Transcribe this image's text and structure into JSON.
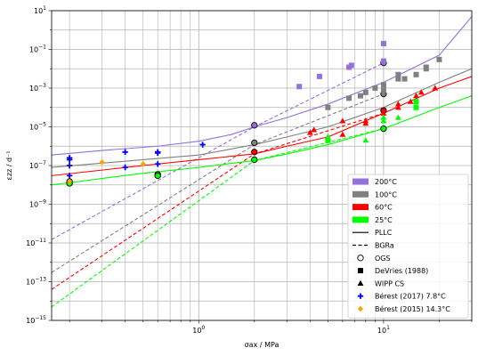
{
  "chart_data": {
    "type": "scatter",
    "xscale": "log",
    "yscale": "log",
    "xlim": [
      0.16,
      30
    ],
    "ylim": [
      1e-15,
      10
    ],
    "grid": true,
    "xlabel": "σax / MPa",
    "ylabel": "εzz / d⁻¹",
    "xticks": [
      {
        "value": 1,
        "base": "10",
        "exp": "0"
      },
      {
        "value": 10,
        "base": "10",
        "exp": "1"
      }
    ],
    "yticks": [
      {
        "value": 1e-15,
        "base": "10",
        "exp": "−15"
      },
      {
        "value": 1e-13,
        "base": "10",
        "exp": "−13"
      },
      {
        "value": 1e-11,
        "base": "10",
        "exp": "−11"
      },
      {
        "value": 1e-09,
        "base": "10",
        "exp": "−9"
      },
      {
        "value": 1e-07,
        "base": "10",
        "exp": "−7"
      },
      {
        "value": 1e-05,
        "base": "10",
        "exp": "−5"
      },
      {
        "value": 0.001,
        "base": "10",
        "exp": "−3"
      },
      {
        "value": 0.1,
        "base": "10",
        "exp": "−1"
      },
      {
        "value": 10,
        "base": "10",
        "exp": "1"
      }
    ],
    "legend_position": "lower-right",
    "legend": [
      {
        "label": "200°C",
        "kind": "patch",
        "color": "#9370DB"
      },
      {
        "label": "100°C",
        "kind": "patch",
        "color": "#808080"
      },
      {
        "label": "60°C",
        "kind": "patch",
        "color": "#ff0000"
      },
      {
        "label": "25°C",
        "kind": "patch",
        "color": "#00ff00"
      },
      {
        "label": "PLLC",
        "kind": "solid-line",
        "color": "#000000"
      },
      {
        "label": "BGRa",
        "kind": "dashed-line",
        "color": "#000000"
      },
      {
        "label": "OGS",
        "kind": "open-circle",
        "color": "#000000"
      },
      {
        "label": "DeVries (1988)",
        "kind": "square",
        "color": "#000000"
      },
      {
        "label": "WIPP CS",
        "kind": "triangle",
        "color": "#000000"
      },
      {
        "label": "Bérest (2017) 7.8°C",
        "kind": "plus",
        "color": "#0000ff"
      },
      {
        "label": "Bérest (2015) 14.3°C",
        "kind": "diamond",
        "color": "#ffa500"
      }
    ],
    "series": [
      {
        "type": "solid-line",
        "color": "#9370DB",
        "name": "200°C PLLC",
        "points": [
          [
            0.16,
            3.5e-07
          ],
          [
            0.3,
            6e-07
          ],
          [
            0.6,
            1e-06
          ],
          [
            1,
            1.8e-06
          ],
          [
            1.5,
            4e-06
          ],
          [
            2,
            1e-05
          ],
          [
            3,
            3e-05
          ],
          [
            5,
            0.00015
          ],
          [
            10,
            0.002
          ],
          [
            20,
            0.05
          ],
          [
            30,
            5
          ]
        ]
      },
      {
        "type": "dashed-line",
        "color": "#9370DB",
        "name": "200°C BGRa",
        "points": [
          [
            0.16,
            1.5e-11
          ],
          [
            2,
            1e-05
          ],
          [
            10,
            0.02
          ]
        ]
      },
      {
        "type": "solid-line",
        "color": "#808080",
        "name": "100°C PLLC",
        "points": [
          [
            0.16,
            8e-08
          ],
          [
            0.5,
            2e-07
          ],
          [
            1,
            3.5e-07
          ],
          [
            2,
            1.2e-06
          ],
          [
            3,
            3e-06
          ],
          [
            5,
            1e-05
          ],
          [
            10,
            0.0001
          ],
          [
            20,
            0.002
          ],
          [
            30,
            0.01
          ]
        ]
      },
      {
        "type": "dashed-line",
        "color": "#808080",
        "name": "100°C BGRa",
        "points": [
          [
            0.16,
            3e-13
          ],
          [
            2,
            1.2e-06
          ],
          [
            10,
            0.0005
          ]
        ]
      },
      {
        "type": "solid-line",
        "color": "#ff0000",
        "name": "60°C PLLC",
        "points": [
          [
            0.16,
            3e-08
          ],
          [
            0.5,
            1e-07
          ],
          [
            1,
            2e-07
          ],
          [
            2,
            4e-07
          ],
          [
            3,
            1e-06
          ],
          [
            5,
            3e-06
          ],
          [
            10,
            5e-05
          ],
          [
            20,
            0.001
          ],
          [
            30,
            0.004
          ]
        ]
      },
      {
        "type": "dashed-line",
        "color": "#ff0000",
        "name": "60°C BGRa",
        "points": [
          [
            0.16,
            4e-14
          ],
          [
            2,
            4e-07
          ],
          [
            10,
            5e-05
          ]
        ]
      },
      {
        "type": "solid-line",
        "color": "#00ff00",
        "name": "25°C PLLC",
        "points": [
          [
            0.16,
            1e-08
          ],
          [
            0.5,
            4e-08
          ],
          [
            1,
            8e-08
          ],
          [
            2,
            1.8e-07
          ],
          [
            3,
            4e-07
          ],
          [
            5,
            1.2e-06
          ],
          [
            10,
            8e-06
          ],
          [
            20,
            0.0001
          ],
          [
            30,
            0.0004
          ]
        ]
      },
      {
        "type": "dashed-line",
        "color": "#00ff00",
        "name": "25°C BGRa",
        "points": [
          [
            0.16,
            5e-15
          ],
          [
            2,
            1.8e-07
          ],
          [
            10,
            8e-06
          ]
        ]
      },
      {
        "type": "open-circle",
        "name": "OGS",
        "points": [
          [
            0.2,
            1.5e-08,
            "#808080"
          ],
          [
            0.2,
            1.2e-08,
            "#00ff00"
          ],
          [
            0.6,
            3.5e-08,
            "#808080"
          ],
          [
            0.6,
            3e-08,
            "#00ff00"
          ],
          [
            2,
            1.2e-05,
            "#9370DB"
          ],
          [
            2,
            1.5e-06,
            "#808080"
          ],
          [
            2,
            5e-07,
            "#ff0000"
          ],
          [
            2,
            2e-07,
            "#00ff00"
          ],
          [
            10,
            0.02,
            "#9370DB"
          ],
          [
            10,
            0.0005,
            "#808080"
          ],
          [
            10,
            7e-05,
            "#ff0000"
          ],
          [
            10,
            8e-06,
            "#00ff00"
          ]
        ]
      },
      {
        "type": "square",
        "color": "#9370DB",
        "name": "DeVries 200°C",
        "points": [
          [
            3.5,
            0.0012
          ],
          [
            4.5,
            0.004
          ],
          [
            6.5,
            0.012
          ],
          [
            6.7,
            0.015
          ],
          [
            10,
            0.2
          ],
          [
            10,
            0.025
          ]
        ]
      },
      {
        "type": "square",
        "color": "#808080",
        "name": "DeVries 100°C",
        "points": [
          [
            5,
            0.0001
          ],
          [
            6.5,
            0.0003
          ],
          [
            7.5,
            0.0004
          ],
          [
            8,
            0.0006
          ],
          [
            9,
            0.001
          ],
          [
            10,
            0.0015
          ],
          [
            10,
            0.0008
          ],
          [
            12,
            0.003
          ],
          [
            12,
            0.005
          ],
          [
            13,
            0.003
          ],
          [
            15,
            0.005
          ],
          [
            17,
            0.012
          ],
          [
            17,
            0.01
          ],
          [
            20,
            0.03
          ]
        ]
      },
      {
        "type": "square",
        "color": "#00ff00",
        "name": "DeVries 25°C",
        "points": [
          [
            5,
            2e-06
          ],
          [
            15,
            0.0002
          ],
          [
            15,
            0.0001
          ]
        ]
      },
      {
        "type": "triangle",
        "color": "#ff0000",
        "name": "WIPP CS 60°C",
        "points": [
          [
            4,
            5e-06
          ],
          [
            4.2,
            7e-06
          ],
          [
            5,
            3e-06
          ],
          [
            6,
            2e-05
          ],
          [
            6,
            4e-06
          ],
          [
            8,
            2e-05
          ],
          [
            8,
            1.5e-05
          ],
          [
            10,
            5e-05
          ],
          [
            12,
            0.00015
          ],
          [
            12,
            0.0001
          ],
          [
            14,
            0.0002
          ],
          [
            15,
            0.0004
          ],
          [
            16,
            0.0006
          ],
          [
            19,
            0.001
          ]
        ]
      },
      {
        "type": "triangle",
        "color": "#00ff00",
        "name": "WIPP CS 25°C",
        "points": [
          [
            5,
            3e-06
          ],
          [
            5,
            2e-06
          ],
          [
            8,
            2e-06
          ],
          [
            10,
            3e-05
          ],
          [
            10,
            2e-05
          ],
          [
            12,
            3e-05
          ]
        ]
      },
      {
        "type": "plus",
        "color": "#0000ff",
        "name": "Bérest (2017) 7.8°C",
        "points": [
          [
            0.2,
            2.5e-07
          ],
          [
            0.2,
            2e-07
          ],
          [
            0.2,
            1e-07
          ],
          [
            0.2,
            3e-08
          ],
          [
            0.4,
            5e-07
          ],
          [
            0.4,
            8e-08
          ],
          [
            0.6,
            5e-07
          ],
          [
            0.6,
            4.5e-07
          ],
          [
            0.6,
            1.2e-07
          ],
          [
            1.05,
            1.2e-06
          ]
        ]
      },
      {
        "type": "diamond",
        "color": "#ffa500",
        "name": "Bérest (2015) 14.3°C",
        "points": [
          [
            0.3,
            1.5e-07
          ],
          [
            0.5,
            1.2e-07
          ],
          [
            0.2,
            1.5e-08
          ]
        ]
      }
    ]
  }
}
